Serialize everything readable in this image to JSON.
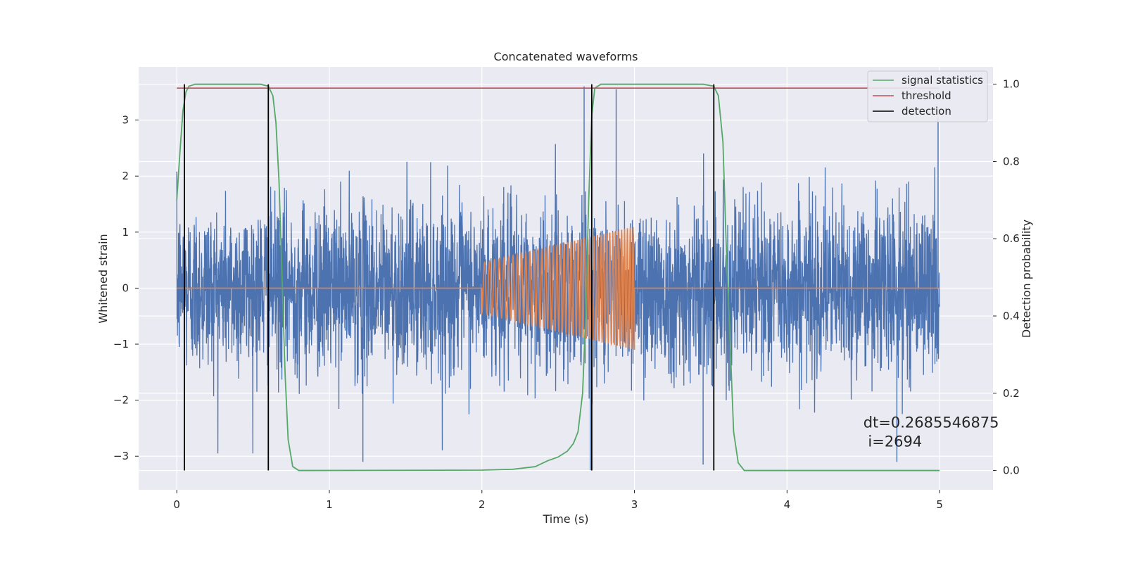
{
  "chart_data": {
    "type": "line",
    "title": "Concatenated waveforms",
    "xlabel": "Time (s)",
    "ylabel_left": "Whitened strain",
    "ylabel_right": "Detection probability",
    "xlim": [
      -0.25,
      5.35
    ],
    "ylim_left": [
      -3.6,
      3.95
    ],
    "ylim_right": [
      -0.05,
      1.045
    ],
    "x_ticks": [
      0,
      1,
      2,
      3,
      4,
      5
    ],
    "y_ticks_left": [
      -3,
      -2,
      -1,
      0,
      1,
      2,
      3
    ],
    "y_ticks_right": [
      0.0,
      0.2,
      0.4,
      0.6,
      0.8,
      1.0
    ],
    "y_ticks_right_labels": [
      "0.0",
      "0.2",
      "0.4",
      "0.6",
      "0.8",
      "1.0"
    ],
    "grid": true,
    "legend_position": "top-right",
    "colors": {
      "background": "#eaeaf2",
      "strain": "#4c72b0",
      "template": "#dd8452",
      "signal_statistics": "#55a868",
      "threshold": "#c44e52",
      "detection": "#000000"
    },
    "series": [
      {
        "name": "",
        "axis": "left",
        "description_type": "noise",
        "x_range": [
          0,
          5
        ],
        "amplitude_std": 0.75,
        "spike_points": [
          [
            2.67,
            3.6
          ],
          [
            2.88,
            3.55
          ],
          [
            4.99,
            3.05
          ],
          [
            2.71,
            -3.25
          ],
          [
            4.72,
            -3.1
          ],
          [
            1.22,
            -3.1
          ],
          [
            3.45,
            -3.15
          ]
        ]
      },
      {
        "name": "",
        "axis": "left",
        "x_range": [
          0,
          5
        ],
        "chirp": {
          "start": 2.0,
          "end": 3.0,
          "amp_start": 0.45,
          "amp_end": 1.1,
          "cycles": 42
        },
        "baseline": 0
      },
      {
        "name": "signal statistics",
        "axis": "right",
        "points": [
          [
            0,
            0.7
          ],
          [
            0.02,
            0.82
          ],
          [
            0.04,
            0.93
          ],
          [
            0.06,
            0.98
          ],
          [
            0.08,
            0.995
          ],
          [
            0.12,
            1.0
          ],
          [
            0.55,
            1.0
          ],
          [
            0.6,
            0.995
          ],
          [
            0.63,
            0.97
          ],
          [
            0.65,
            0.9
          ],
          [
            0.67,
            0.75
          ],
          [
            0.69,
            0.5
          ],
          [
            0.71,
            0.25
          ],
          [
            0.73,
            0.08
          ],
          [
            0.76,
            0.01
          ],
          [
            0.8,
            0.0
          ],
          [
            2.0,
            0.001
          ],
          [
            2.2,
            0.003
          ],
          [
            2.35,
            0.01
          ],
          [
            2.43,
            0.025
          ],
          [
            2.5,
            0.035
          ],
          [
            2.56,
            0.05
          ],
          [
            2.6,
            0.07
          ],
          [
            2.63,
            0.1
          ],
          [
            2.66,
            0.2
          ],
          [
            2.68,
            0.4
          ],
          [
            2.7,
            0.7
          ],
          [
            2.72,
            0.92
          ],
          [
            2.74,
            0.99
          ],
          [
            2.78,
            1.0
          ],
          [
            3.45,
            1.0
          ],
          [
            3.52,
            0.995
          ],
          [
            3.55,
            0.97
          ],
          [
            3.58,
            0.85
          ],
          [
            3.6,
            0.6
          ],
          [
            3.63,
            0.3
          ],
          [
            3.65,
            0.1
          ],
          [
            3.68,
            0.02
          ],
          [
            3.72,
            0.0
          ],
          [
            5.0,
            0.0
          ]
        ]
      },
      {
        "name": "threshold",
        "axis": "right",
        "points": [
          [
            0,
            0.99
          ],
          [
            5.0,
            0.99
          ]
        ]
      },
      {
        "name": "detection",
        "axis": "right",
        "vertical_lines_x": [
          0.05,
          0.6,
          2.72,
          3.52
        ],
        "y_range": [
          0.0,
          1.0
        ]
      }
    ],
    "legend": [
      "signal statistics",
      "threshold",
      "detection"
    ],
    "annotation": {
      "line1": "dt=0.2685546875",
      "line2": " i=2694",
      "x": 4.5,
      "y_right": 0.1
    }
  }
}
